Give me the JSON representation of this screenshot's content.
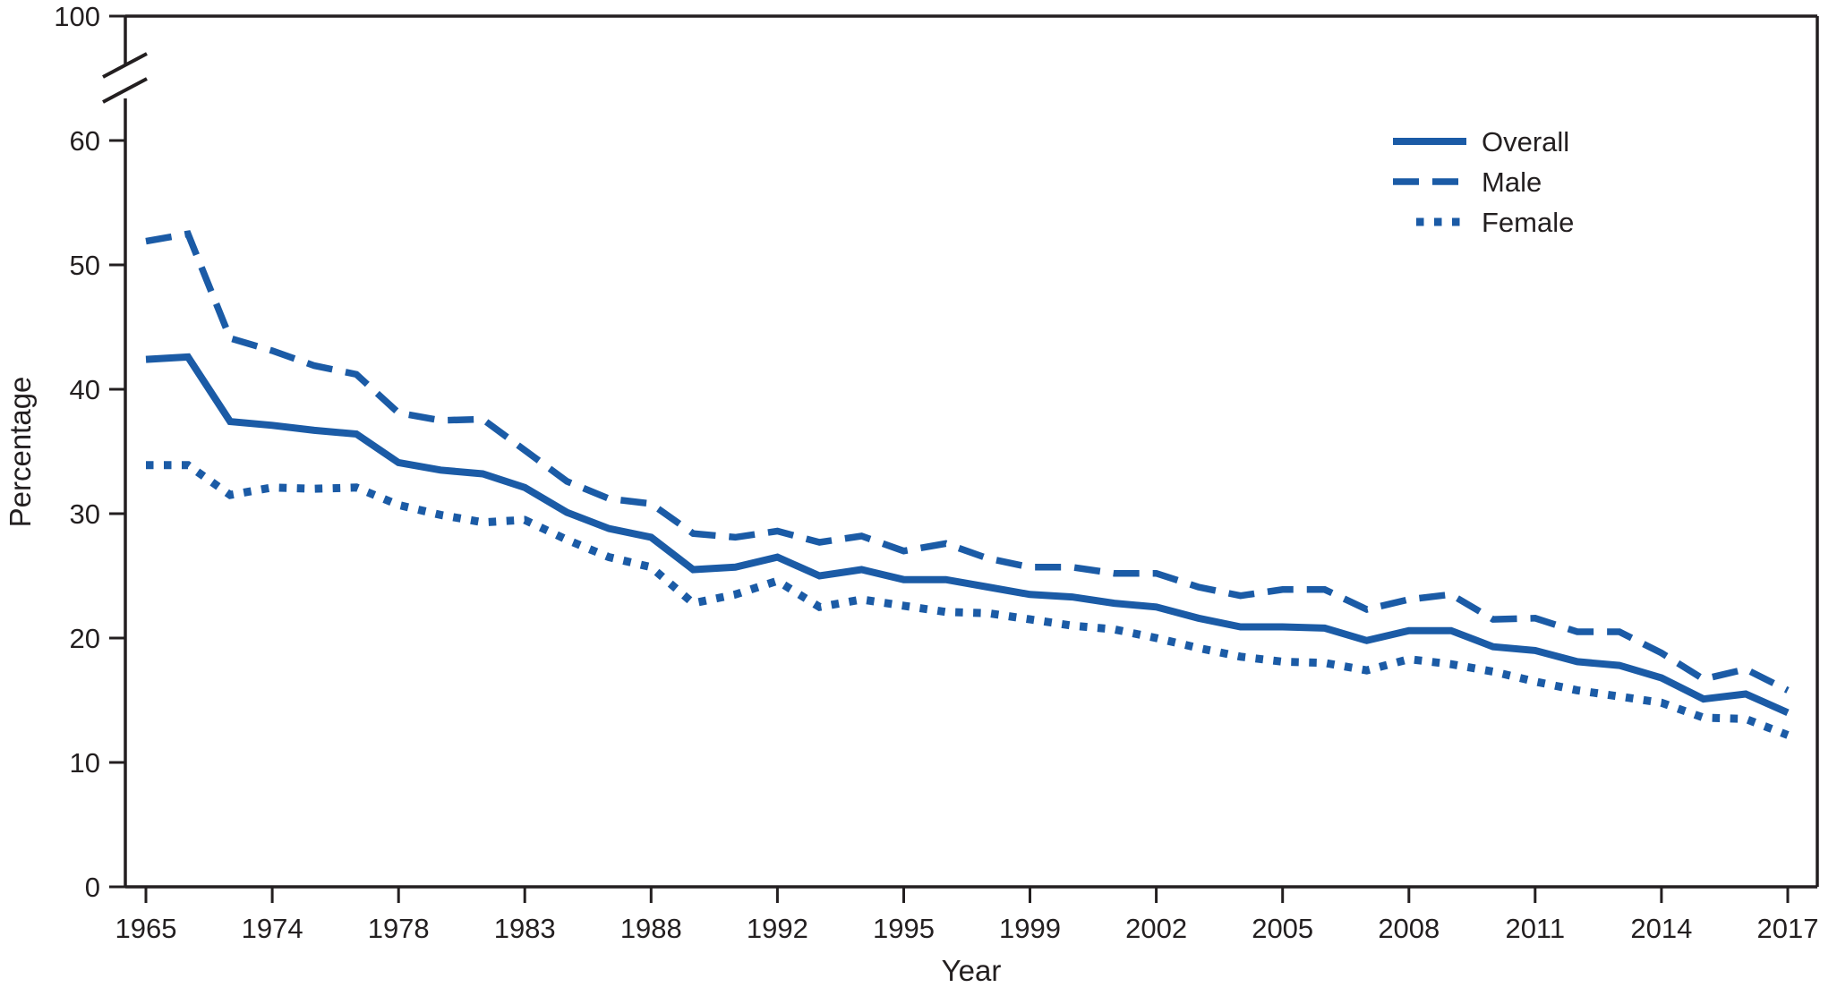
{
  "chart": {
    "y_axis_label": "Percentage",
    "x_axis_label": "Year",
    "line_color": "#1b5ba6",
    "axis_color": "#231f20",
    "text_color": "#231f20",
    "background": "#ffffff"
  },
  "legend": {
    "position": "top-right",
    "items": [
      {
        "label": "Overall",
        "style": "solid"
      },
      {
        "label": "Male",
        "style": "dashed"
      },
      {
        "label": "Female",
        "style": "dotted"
      }
    ]
  },
  "chart_data": {
    "type": "line",
    "xlabel": "Year",
    "ylabel": "Percentage",
    "grid": false,
    "legend_position": "top-right",
    "y_axis_break": true,
    "ylim_lower_segment": [
      0,
      60
    ],
    "y_top_tick_above_break": 100,
    "y_ticks_lower": [
      0,
      10,
      20,
      30,
      40,
      50,
      60
    ],
    "x_tick_labels": [
      "1965",
      "1974",
      "1978",
      "1983",
      "1988",
      "1992",
      "1995",
      "1999",
      "2002",
      "2005",
      "2008",
      "2011",
      "2014",
      "2017"
    ],
    "x": [
      1965,
      1966,
      1970,
      1974,
      1976,
      1977,
      1978,
      1979,
      1980,
      1983,
      1985,
      1987,
      1988,
      1990,
      1991,
      1992,
      1993,
      1994,
      1995,
      1997,
      1998,
      1999,
      2000,
      2001,
      2002,
      2003,
      2004,
      2005,
      2006,
      2007,
      2008,
      2009,
      2010,
      2011,
      2012,
      2013,
      2014,
      2015,
      2016,
      2017
    ],
    "series": [
      {
        "name": "Overall",
        "style": "solid",
        "values": [
          42.4,
          42.6,
          37.4,
          37.1,
          36.7,
          36.4,
          34.1,
          33.5,
          33.2,
          32.1,
          30.1,
          28.8,
          28.1,
          25.5,
          25.7,
          26.5,
          25.0,
          25.5,
          24.7,
          24.7,
          24.1,
          23.5,
          23.3,
          22.8,
          22.5,
          21.6,
          20.9,
          20.9,
          20.8,
          19.8,
          20.6,
          20.6,
          19.3,
          19.0,
          18.1,
          17.8,
          16.8,
          15.1,
          15.5,
          14.0
        ]
      },
      {
        "name": "Male",
        "style": "dashed",
        "values": [
          51.9,
          52.5,
          44.1,
          43.1,
          41.9,
          41.2,
          38.1,
          37.5,
          37.6,
          35.1,
          32.6,
          31.2,
          30.8,
          28.4,
          28.1,
          28.6,
          27.7,
          28.2,
          27.0,
          27.6,
          26.4,
          25.7,
          25.7,
          25.2,
          25.2,
          24.1,
          23.4,
          23.9,
          23.9,
          22.3,
          23.1,
          23.5,
          21.5,
          21.6,
          20.5,
          20.5,
          18.8,
          16.7,
          17.5,
          15.8
        ]
      },
      {
        "name": "Female",
        "style": "dotted",
        "values": [
          33.9,
          33.9,
          31.5,
          32.1,
          32.0,
          32.1,
          30.7,
          29.9,
          29.3,
          29.5,
          27.9,
          26.5,
          25.7,
          22.8,
          23.5,
          24.6,
          22.5,
          23.1,
          22.6,
          22.1,
          22.0,
          21.5,
          21.0,
          20.7,
          20.0,
          19.2,
          18.5,
          18.1,
          18.0,
          17.4,
          18.3,
          17.9,
          17.3,
          16.5,
          15.8,
          15.3,
          14.8,
          13.6,
          13.5,
          12.2
        ]
      }
    ]
  }
}
